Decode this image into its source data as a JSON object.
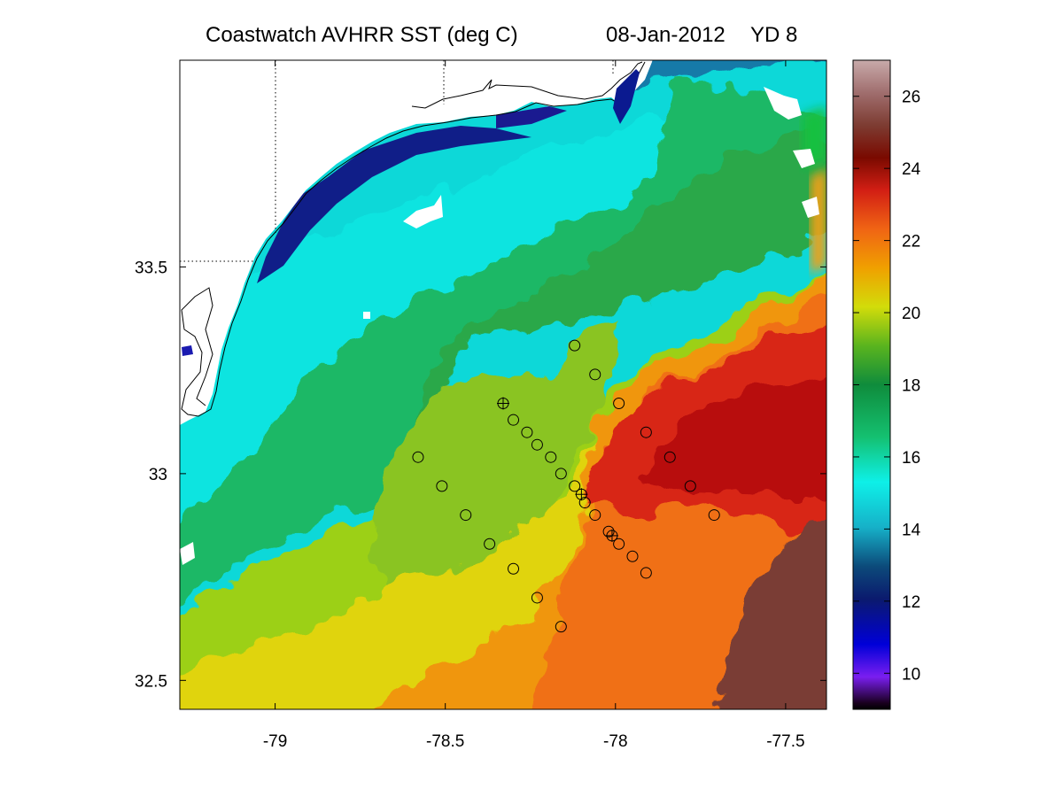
{
  "title": {
    "main": "Coastwatch   AVHRR   SST  (deg C)",
    "date": "08-Jan-2012",
    "yearday": "YD 8"
  },
  "map": {
    "x_ticks": [
      "-79",
      "-78.5",
      "-78",
      "-77.5"
    ],
    "y_ticks": [
      "33.5",
      "33",
      "32.5"
    ],
    "x_range": [
      -79.28,
      -77.38
    ],
    "y_range": [
      32.43,
      34.0
    ],
    "grid_lines": "dotted at -79, -78.5, -78 lon and 33.5 lat",
    "land_color": "#ffffff"
  },
  "colorbar": {
    "ticks": [
      "26",
      "24",
      "22",
      "20",
      "18",
      "16",
      "14",
      "12",
      "10"
    ],
    "range": [
      9,
      27
    ],
    "colors": [
      "#1a0020",
      "#7a1ef0",
      "#0000d8",
      "#0b1a6e",
      "#16b0c8",
      "#0ef0e8",
      "#14c070",
      "#0f8c3c",
      "#5ab41e",
      "#d2dc0a",
      "#f0a000",
      "#f06414",
      "#d21e14",
      "#7a0a00",
      "#7d3c32",
      "#a06e6e",
      "#c8aaaa"
    ]
  },
  "stations": {
    "circles": [
      [
        -78.12,
        33.31
      ],
      [
        -78.06,
        33.24
      ],
      [
        -77.99,
        33.17
      ],
      [
        -77.91,
        33.1
      ],
      [
        -77.84,
        33.04
      ],
      [
        -77.78,
        32.97
      ],
      [
        -77.71,
        32.9
      ],
      [
        -78.3,
        33.13
      ],
      [
        -78.26,
        33.1
      ],
      [
        -78.23,
        33.07
      ],
      [
        -78.19,
        33.04
      ],
      [
        -78.16,
        33.0
      ],
      [
        -78.12,
        32.97
      ],
      [
        -78.09,
        32.93
      ],
      [
        -78.06,
        32.9
      ],
      [
        -78.02,
        32.86
      ],
      [
        -77.99,
        32.83
      ],
      [
        -77.95,
        32.8
      ],
      [
        -77.91,
        32.76
      ],
      [
        -78.58,
        33.04
      ],
      [
        -78.51,
        32.97
      ],
      [
        -78.44,
        32.9
      ],
      [
        -78.37,
        32.83
      ],
      [
        -78.3,
        32.77
      ],
      [
        -78.23,
        32.7
      ],
      [
        -78.16,
        32.63
      ]
    ],
    "crossed": [
      [
        -78.33,
        33.17
      ],
      [
        -78.1,
        32.95
      ],
      [
        -78.01,
        32.85
      ]
    ]
  }
}
